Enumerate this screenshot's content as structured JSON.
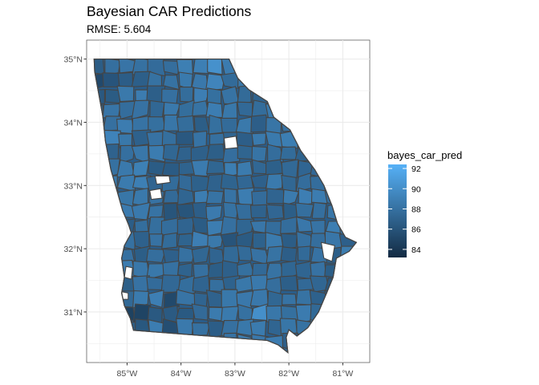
{
  "chart_data": {
    "type": "choropleth",
    "title": "Bayesian CAR Predictions",
    "subtitle": "RMSE: 5.604",
    "x_ticks": [
      "85°W",
      "84°W",
      "83°W",
      "82°W",
      "81°W"
    ],
    "y_ticks": [
      "35°N",
      "34°N",
      "33°N",
      "32°N",
      "31°N"
    ],
    "x_tick_values": [
      -85,
      -84,
      -83,
      -82,
      -81
    ],
    "y_tick_values": [
      35,
      34,
      33,
      32,
      31
    ],
    "xlim": [
      -85.75,
      -80.5
    ],
    "ylim": [
      30.2,
      35.3
    ],
    "legend": {
      "title": "bayes_car_pred",
      "ticks": [
        "84",
        "86",
        "88",
        "90",
        "92"
      ],
      "tick_values": [
        84,
        86,
        88,
        90,
        92
      ],
      "range": [
        83.2,
        92.4
      ],
      "low_color": "#132b43",
      "high_color": "#56b1f7",
      "position": "right"
    },
    "missing_color": "#ffffff",
    "panel_background": "#ffffff",
    "grid_color": "#ebebeb",
    "border_color": "#4d4d4d"
  }
}
